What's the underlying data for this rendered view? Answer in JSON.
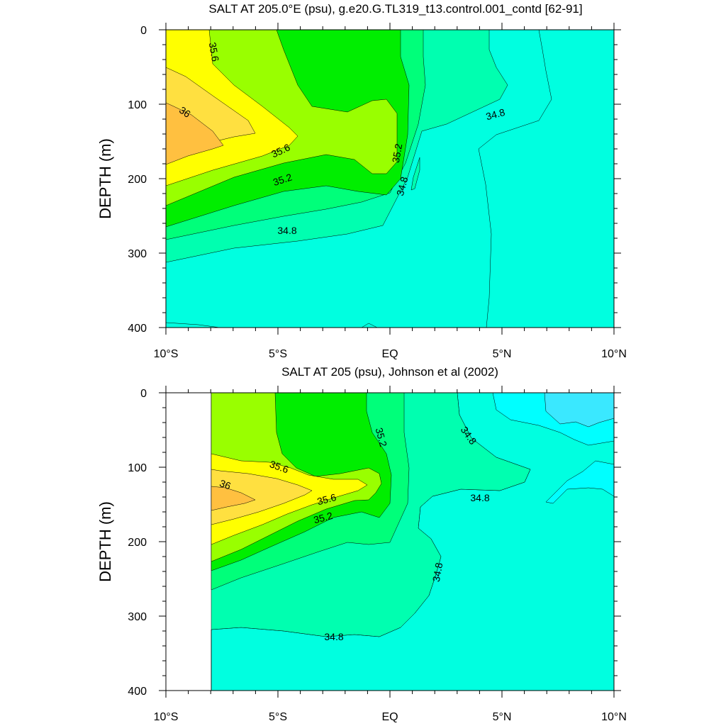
{
  "chart_data": [
    {
      "type": "contour",
      "title": "SALT AT 205.0°E (psu), g.e20.G.TL319_t13.control.001_contd [62-91]",
      "ylabel": "DEPTH (m)",
      "x_ticks": [
        "10°S",
        "5°S",
        "EQ",
        "5°N",
        "10°N"
      ],
      "y_ticks": [
        "0",
        "100",
        "200",
        "300",
        "400"
      ],
      "xlim": [
        -10,
        10
      ],
      "ylim": [
        0,
        400
      ],
      "y_inverted": true,
      "contour_interval": 0.2,
      "contour_labels": [
        "35.6",
        "36",
        "35.6",
        "35.2",
        "35.2",
        "34.8",
        "34.8",
        "34.8"
      ],
      "salinity_extremes": {
        "max_psu": 36.2,
        "max_depth_m": 150,
        "min_psu": 34.4,
        "min_location": "10°N, 0-150 m"
      }
    },
    {
      "type": "contour",
      "title": "SALT AT 205 (psu), Johnson et al (2002)",
      "ylabel": "DEPTH (m)",
      "x_ticks": [
        "10°S",
        "5°S",
        "EQ",
        "5°N",
        "10°N"
      ],
      "y_ticks": [
        "0",
        "100",
        "200",
        "300",
        "400"
      ],
      "xlim": [
        -10,
        10
      ],
      "ylim": [
        0,
        400
      ],
      "y_inverted": true,
      "data_start_lat": -8,
      "contour_interval": 0.2,
      "contour_labels": [
        "35.2",
        "34.8",
        "35.6",
        "36",
        "35.6",
        "35.2",
        "34.8",
        "34.8",
        "34.8"
      ],
      "salinity_extremes": {
        "max_psu": 36.2,
        "max_depth_m": 145,
        "min_psu": 34.4,
        "min_location": "7-10°N, 0-40 m"
      }
    }
  ],
  "colors": {
    "c34_4": "#3ae8ff",
    "c34_6": "#00ffff",
    "c34_8": "#00ffe0",
    "c35_0": "#00ffb0",
    "c35_2": "#00ff7a",
    "c35_4": "#00ee00",
    "c35_6": "#99ff00",
    "c35_8": "#ffff00",
    "c36_0": "#ffe040",
    "c36_2": "#ffc040"
  }
}
